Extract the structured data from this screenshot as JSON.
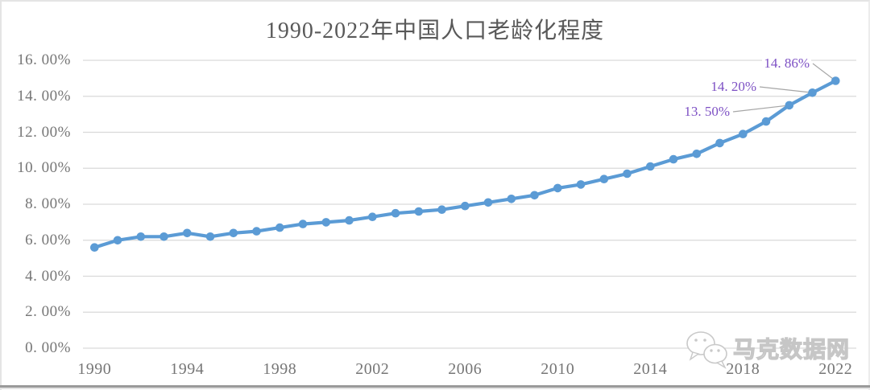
{
  "chart_data": {
    "type": "line",
    "title": "1990-2022年中国人口老龄化程度",
    "unit": "%",
    "x": [
      1990,
      1991,
      1992,
      1993,
      1994,
      1995,
      1996,
      1997,
      1998,
      1999,
      2000,
      2001,
      2002,
      2003,
      2004,
      2005,
      2006,
      2007,
      2008,
      2009,
      2010,
      2011,
      2012,
      2013,
      2014,
      2015,
      2016,
      2017,
      2018,
      2019,
      2020,
      2021,
      2022
    ],
    "values": [
      5.6,
      6.0,
      6.2,
      6.2,
      6.4,
      6.2,
      6.4,
      6.5,
      6.7,
      6.9,
      7.0,
      7.1,
      7.3,
      7.5,
      7.6,
      7.7,
      7.9,
      8.1,
      8.3,
      8.5,
      8.9,
      9.1,
      9.4,
      9.7,
      10.1,
      10.5,
      10.8,
      11.4,
      11.9,
      12.6,
      13.5,
      14.2,
      14.86
    ],
    "ylim": [
      0,
      16
    ],
    "grid": "horizontal",
    "legend": "none",
    "yticks": [
      {
        "value": 16,
        "label": "16. 00%"
      },
      {
        "value": 14,
        "label": "14. 00%"
      },
      {
        "value": 12,
        "label": "12. 00%"
      },
      {
        "value": 10,
        "label": "10. 00%"
      },
      {
        "value": 8,
        "label": "8. 00%"
      },
      {
        "value": 6,
        "label": "6. 00%"
      },
      {
        "value": 4,
        "label": "4. 00%"
      },
      {
        "value": 2,
        "label": "2. 00%"
      },
      {
        "value": 0,
        "label": "0. 00%"
      }
    ],
    "xticks": [
      {
        "value": 1990,
        "label": "1990"
      },
      {
        "value": 1994,
        "label": "1994"
      },
      {
        "value": 1998,
        "label": "1998"
      },
      {
        "value": 2002,
        "label": "2002"
      },
      {
        "value": 2006,
        "label": "2006"
      },
      {
        "value": 2010,
        "label": "2010"
      },
      {
        "value": 2014,
        "label": "2014"
      },
      {
        "value": 2018,
        "label": "2018"
      },
      {
        "value": 2022,
        "label": "2022"
      }
    ],
    "annotations": [
      {
        "year": 2020,
        "value": 13.5,
        "label": "13. 50%"
      },
      {
        "year": 2021,
        "value": 14.2,
        "label": "14. 20%"
      },
      {
        "year": 2022,
        "value": 14.86,
        "label": "14. 86%"
      }
    ],
    "colors": {
      "line": "#5B9BD5",
      "marker": "#5B9BD5",
      "gridline": "#D9D9D9",
      "leader_line": "#A6A6A6",
      "annotation_text": "#7D50C4",
      "axis_text": "#767676",
      "title_text": "#595959"
    }
  },
  "watermark": {
    "text": "马克数据网",
    "icon": "wechat-icon"
  }
}
